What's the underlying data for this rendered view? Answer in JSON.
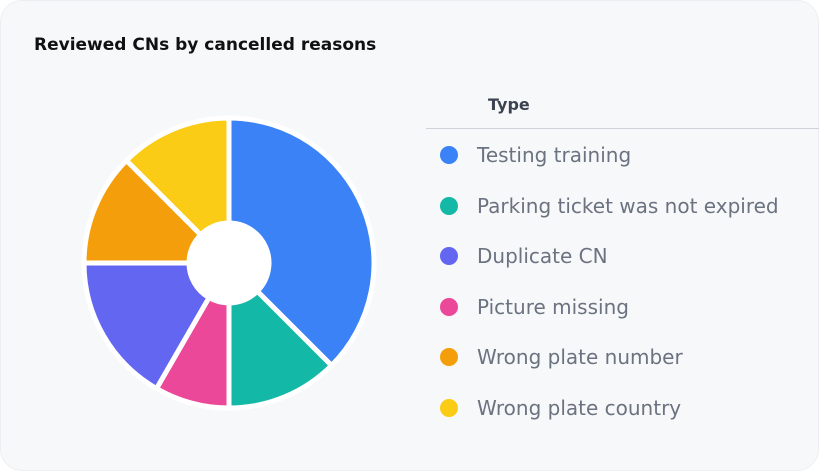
{
  "chart_data": {
    "type": "pie",
    "variant": "donut",
    "title": "Reviewed CNs by cancelled reasons",
    "legend_title": "Type",
    "legend_placement": "right",
    "categories": [
      "Testing training",
      "Parking ticket was not expired",
      "Duplicate CN",
      "Picture missing",
      "Wrong plate number",
      "Wrong plate country"
    ],
    "values": [
      9,
      3,
      4,
      2,
      3,
      3
    ],
    "colors": [
      "#3b82f6",
      "#14b8a6",
      "#6366f1",
      "#ec4899",
      "#f59e0b",
      "#facc15"
    ],
    "draw_order": [
      0,
      1,
      3,
      2,
      4,
      5
    ]
  }
}
